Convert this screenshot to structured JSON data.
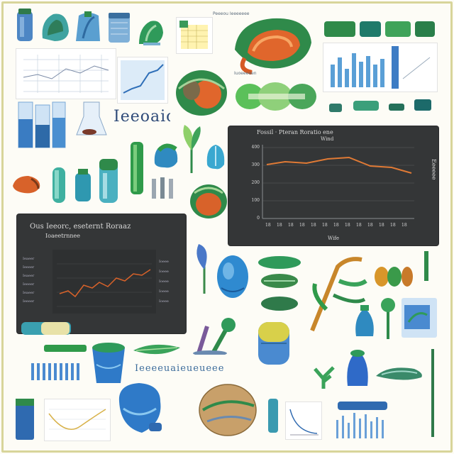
{
  "image_kind": "ai-generated collage of scientific illustrations",
  "palette": {
    "background": "#fdfcf6",
    "border": "#d8d59a",
    "dark_panel": "#343637",
    "green": "#2f8a4a",
    "blue": "#2f6fb8",
    "orange": "#d86a2a",
    "line_orange": "#e07a35"
  },
  "right_panel": {
    "title": "Fossil · Pteran Roratio ene",
    "subtitle": "Wind",
    "y_ticks": [
      "400",
      "300",
      "200",
      "100",
      "0"
    ],
    "x_ticks": [
      "18",
      "18",
      "18",
      "18",
      "18",
      "18",
      "18",
      "18",
      "18",
      "18",
      "18",
      "18",
      "18"
    ],
    "x_label": "Wife",
    "side_label": "Eeeeee"
  },
  "left_panel": {
    "title": "Ous Ieeorc, eseternt Roraaz",
    "subtitle": "Ioaeetrnnee",
    "left_column": [
      "Ieaeer",
      "Ieeeer",
      "Ieaeer",
      "Ieeeer",
      "Ieaeer",
      "Ieeeer"
    ],
    "right_column": [
      "Ioeee",
      "Ioeee",
      "Ioeee",
      "Ioeee",
      "Ioeee"
    ]
  },
  "labels": {
    "handwriting_1": "Ieeoaiolo",
    "handwriting_2": "Ieeeeuaieueueee",
    "caption_top": "Peeeou Ieeeeeee",
    "caption_mid": "Iuoeeeeen"
  }
}
